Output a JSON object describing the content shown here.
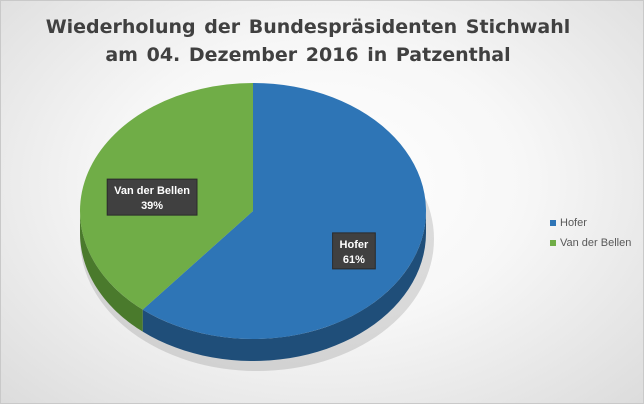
{
  "chart_data": {
    "type": "pie",
    "title": "Wiederholung der Bundespräsidenten Stichwahl am 04. Dezember 2016 in Patzenthal",
    "title_lines": [
      "Wiederholung der Bundespräsidenten Stichwahl",
      "am 04. Dezember 2016 in Patzenthal"
    ],
    "three_d": true,
    "legend_position": "right",
    "slices": [
      {
        "name": "Hofer",
        "value": 61,
        "label": "61%",
        "color": "#2e75b6",
        "side_color": "#1f4e79"
      },
      {
        "name": "Van der Bellen",
        "value": 39,
        "label": "39%",
        "color": "#70ad47",
        "side_color": "#4a7a2c"
      }
    ]
  }
}
